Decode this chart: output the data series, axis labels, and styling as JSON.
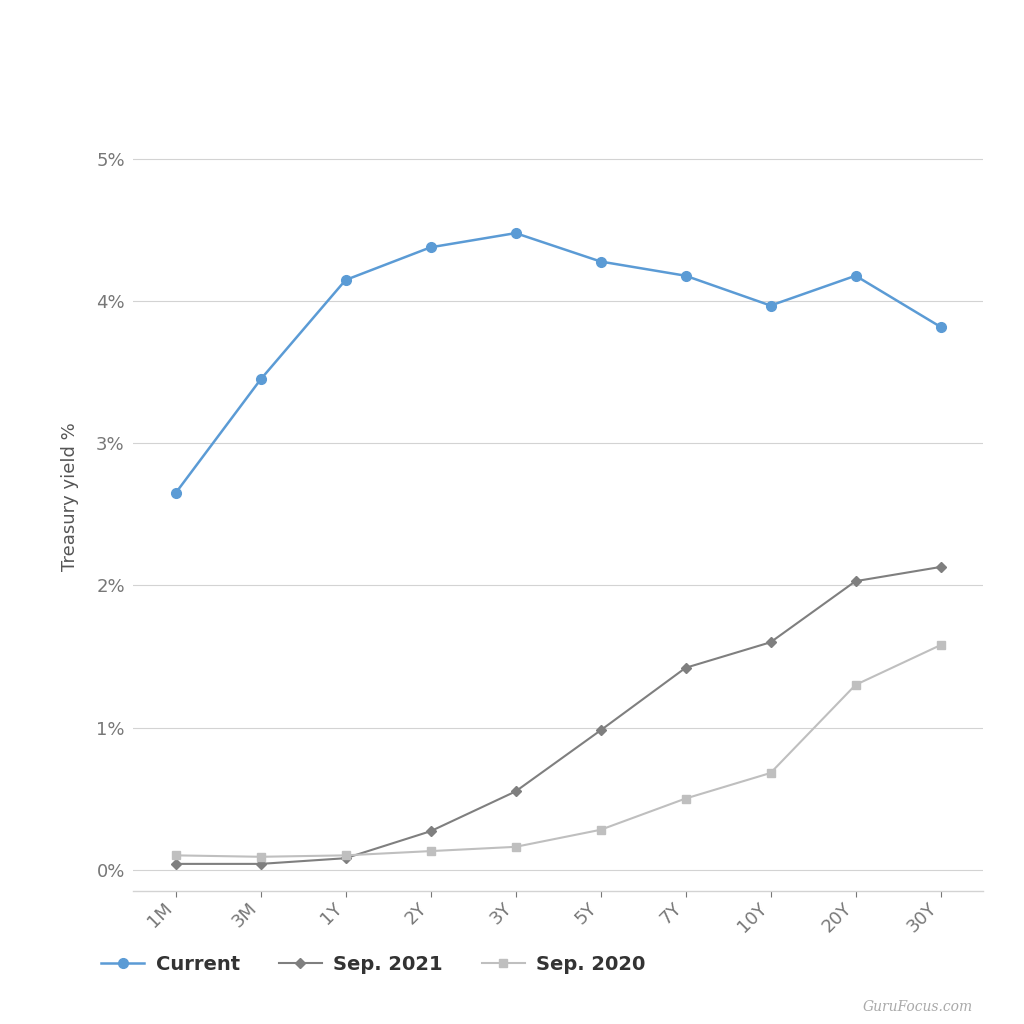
{
  "x_labels": [
    "1M",
    "3M",
    "1Y",
    "2Y",
    "3Y",
    "5Y",
    "7Y",
    "10Y",
    "20Y",
    "30Y"
  ],
  "x_positions": [
    0,
    1,
    2,
    3,
    4,
    5,
    6,
    7,
    8,
    9
  ],
  "current": [
    2.65,
    3.45,
    4.15,
    4.38,
    4.48,
    4.28,
    4.18,
    3.97,
    4.18,
    3.82
  ],
  "sep2021": [
    0.04,
    0.04,
    0.08,
    0.27,
    0.55,
    0.98,
    1.42,
    1.6,
    2.03,
    2.13
  ],
  "sep2020": [
    0.1,
    0.09,
    0.1,
    0.13,
    0.16,
    0.28,
    0.5,
    0.68,
    1.3,
    1.58
  ],
  "current_color": "#5b9bd5",
  "sep2021_color": "#7f7f7f",
  "sep2020_color": "#bfbfbf",
  "ylabel": "Treasury yield %",
  "ylim": [
    -0.15,
    5.4
  ],
  "yticks": [
    0,
    1,
    2,
    3,
    4,
    5
  ],
  "ytick_labels": [
    "0%",
    "1%",
    "2%",
    "3%",
    "4%",
    "5%"
  ],
  "legend_labels": [
    "Current",
    "Sep. 2021",
    "Sep. 2020"
  ],
  "watermark": "GuruFocus.com",
  "bg_color": "#ffffff",
  "grid_color": "#d3d3d3",
  "label_fontsize": 13,
  "tick_fontsize": 13,
  "legend_fontsize": 14
}
